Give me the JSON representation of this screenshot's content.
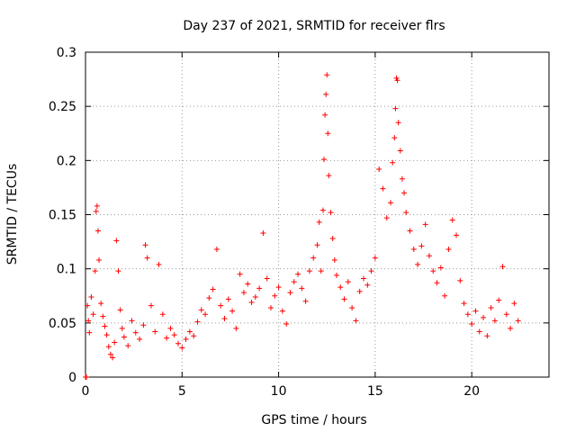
{
  "chart_data": {
    "type": "scatter",
    "title": "Day 237 of 2021, SRMTID for receiver flrs",
    "xlabel": "GPS time / hours",
    "ylabel": "SRMTID / TECUs",
    "xlim": [
      0,
      24
    ],
    "ylim": [
      0,
      0.3
    ],
    "x_ticks": [
      0,
      5,
      10,
      15,
      20
    ],
    "y_ticks": [
      0,
      0.05,
      0.1,
      0.15,
      0.2,
      0.25,
      0.3
    ],
    "x_tick_labels": [
      "0",
      "5",
      "10",
      "15",
      "20"
    ],
    "y_tick_labels": [
      "0",
      "0.05",
      "0.1",
      "0.15",
      "0.2",
      "0.25",
      "0.3"
    ],
    "grid": true,
    "marker": "plus",
    "color": "#ff0000",
    "series": [
      {
        "points": [
          [
            0.0,
            0.0
          ],
          [
            0.05,
            0.0
          ],
          [
            0.1,
            0.066
          ],
          [
            0.15,
            0.052
          ],
          [
            0.2,
            0.041
          ],
          [
            0.3,
            0.074
          ],
          [
            0.4,
            0.058
          ],
          [
            0.5,
            0.098
          ],
          [
            0.55,
            0.153
          ],
          [
            0.6,
            0.158
          ],
          [
            0.65,
            0.135
          ],
          [
            0.7,
            0.108
          ],
          [
            0.8,
            0.068
          ],
          [
            0.9,
            0.056
          ],
          [
            1.0,
            0.047
          ],
          [
            1.1,
            0.039
          ],
          [
            1.2,
            0.028
          ],
          [
            1.3,
            0.021
          ],
          [
            1.4,
            0.018
          ],
          [
            1.5,
            0.032
          ],
          [
            1.6,
            0.126
          ],
          [
            1.7,
            0.098
          ],
          [
            1.8,
            0.062
          ],
          [
            1.9,
            0.045
          ],
          [
            2.0,
            0.037
          ],
          [
            2.2,
            0.029
          ],
          [
            2.4,
            0.052
          ],
          [
            2.6,
            0.041
          ],
          [
            2.8,
            0.035
          ],
          [
            3.0,
            0.048
          ],
          [
            3.1,
            0.122
          ],
          [
            3.2,
            0.11
          ],
          [
            3.4,
            0.066
          ],
          [
            3.6,
            0.042
          ],
          [
            3.8,
            0.104
          ],
          [
            4.0,
            0.058
          ],
          [
            4.2,
            0.036
          ],
          [
            4.4,
            0.045
          ],
          [
            4.6,
            0.039
          ],
          [
            4.8,
            0.031
          ],
          [
            5.0,
            0.027
          ],
          [
            5.2,
            0.035
          ],
          [
            5.4,
            0.042
          ],
          [
            5.6,
            0.038
          ],
          [
            5.8,
            0.051
          ],
          [
            6.0,
            0.062
          ],
          [
            6.2,
            0.058
          ],
          [
            6.4,
            0.073
          ],
          [
            6.6,
            0.081
          ],
          [
            6.8,
            0.118
          ],
          [
            7.0,
            0.066
          ],
          [
            7.2,
            0.054
          ],
          [
            7.4,
            0.072
          ],
          [
            7.6,
            0.061
          ],
          [
            7.8,
            0.045
          ],
          [
            8.0,
            0.095
          ],
          [
            8.2,
            0.078
          ],
          [
            8.4,
            0.086
          ],
          [
            8.6,
            0.069
          ],
          [
            8.8,
            0.074
          ],
          [
            9.0,
            0.082
          ],
          [
            9.2,
            0.133
          ],
          [
            9.4,
            0.091
          ],
          [
            9.6,
            0.064
          ],
          [
            9.8,
            0.075
          ],
          [
            10.0,
            0.083
          ],
          [
            10.2,
            0.061
          ],
          [
            10.4,
            0.049
          ],
          [
            10.6,
            0.078
          ],
          [
            10.8,
            0.088
          ],
          [
            11.0,
            0.095
          ],
          [
            11.2,
            0.082
          ],
          [
            11.4,
            0.07
          ],
          [
            11.6,
            0.098
          ],
          [
            11.8,
            0.11
          ],
          [
            12.0,
            0.122
          ],
          [
            12.1,
            0.143
          ],
          [
            12.2,
            0.098
          ],
          [
            12.3,
            0.154
          ],
          [
            12.35,
            0.201
          ],
          [
            12.4,
            0.242
          ],
          [
            12.45,
            0.261
          ],
          [
            12.5,
            0.279
          ],
          [
            12.55,
            0.225
          ],
          [
            12.6,
            0.186
          ],
          [
            12.7,
            0.152
          ],
          [
            12.8,
            0.128
          ],
          [
            12.9,
            0.108
          ],
          [
            13.0,
            0.094
          ],
          [
            13.2,
            0.083
          ],
          [
            13.4,
            0.072
          ],
          [
            13.6,
            0.088
          ],
          [
            13.8,
            0.064
          ],
          [
            14.0,
            0.052
          ],
          [
            14.2,
            0.079
          ],
          [
            14.4,
            0.091
          ],
          [
            14.6,
            0.085
          ],
          [
            14.8,
            0.098
          ],
          [
            15.0,
            0.11
          ],
          [
            15.2,
            0.192
          ],
          [
            15.4,
            0.174
          ],
          [
            15.6,
            0.147
          ],
          [
            15.8,
            0.161
          ],
          [
            15.9,
            0.198
          ],
          [
            16.0,
            0.221
          ],
          [
            16.05,
            0.248
          ],
          [
            16.1,
            0.276
          ],
          [
            16.15,
            0.274
          ],
          [
            16.2,
            0.235
          ],
          [
            16.3,
            0.209
          ],
          [
            16.4,
            0.183
          ],
          [
            16.5,
            0.17
          ],
          [
            16.6,
            0.152
          ],
          [
            16.8,
            0.135
          ],
          [
            17.0,
            0.118
          ],
          [
            17.2,
            0.104
          ],
          [
            17.4,
            0.121
          ],
          [
            17.6,
            0.141
          ],
          [
            17.8,
            0.112
          ],
          [
            18.0,
            0.098
          ],
          [
            18.2,
            0.087
          ],
          [
            18.4,
            0.101
          ],
          [
            18.6,
            0.075
          ],
          [
            18.8,
            0.118
          ],
          [
            19.0,
            0.145
          ],
          [
            19.2,
            0.131
          ],
          [
            19.4,
            0.089
          ],
          [
            19.6,
            0.068
          ],
          [
            19.8,
            0.058
          ],
          [
            20.0,
            0.049
          ],
          [
            20.2,
            0.061
          ],
          [
            20.4,
            0.042
          ],
          [
            20.6,
            0.055
          ],
          [
            20.8,
            0.038
          ],
          [
            21.0,
            0.064
          ],
          [
            21.2,
            0.052
          ],
          [
            21.4,
            0.071
          ],
          [
            21.6,
            0.102
          ],
          [
            21.8,
            0.058
          ],
          [
            22.0,
            0.045
          ],
          [
            22.2,
            0.068
          ],
          [
            22.4,
            0.052
          ]
        ]
      }
    ]
  }
}
